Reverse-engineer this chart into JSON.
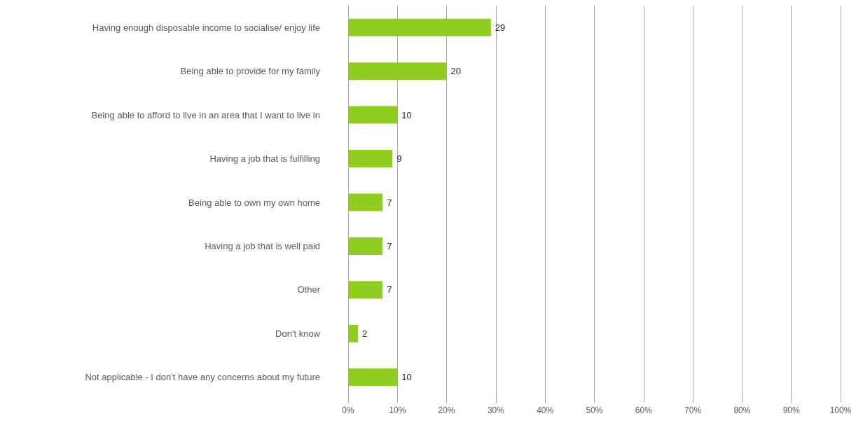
{
  "chart_data": {
    "type": "bar",
    "orientation": "horizontal",
    "categories": [
      "Having enough disposable income to socialise/ enjoy life",
      "Being able to provide for my family",
      "Being able to afford to live in an area that I want to live in",
      "Having a job that is fulfilling",
      "Being able to own my own home",
      "Having a job that is well paid",
      "Other",
      "Don't know",
      "Not applicable - I don't have any concerns about my future"
    ],
    "values": [
      29,
      20,
      10,
      9,
      7,
      7,
      7,
      2,
      10
    ],
    "color": "#8fce1e",
    "xlim": [
      0,
      100
    ],
    "xticks": [
      {
        "value": 0,
        "label": "0%"
      },
      {
        "value": 10,
        "label": "10%"
      },
      {
        "value": 20,
        "label": "20%"
      },
      {
        "value": 30,
        "label": "30%"
      },
      {
        "value": 40,
        "label": "40%"
      },
      {
        "value": 50,
        "label": "50%"
      },
      {
        "value": 60,
        "label": "60%"
      },
      {
        "value": 70,
        "label": "70%"
      },
      {
        "value": 80,
        "label": "80%"
      },
      {
        "value": 90,
        "label": "90%"
      },
      {
        "value": 100,
        "label": "100%"
      }
    ],
    "grid": "x",
    "data_labels": true
  }
}
